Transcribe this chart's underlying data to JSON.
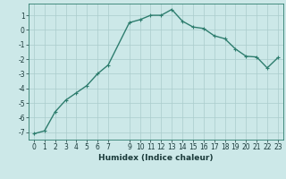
{
  "x": [
    0,
    1,
    2,
    3,
    4,
    5,
    6,
    7,
    9,
    10,
    11,
    12,
    13,
    14,
    15,
    16,
    17,
    18,
    19,
    20,
    21,
    22,
    23
  ],
  "y": [
    -7.1,
    -6.9,
    -5.6,
    -4.8,
    -4.3,
    -3.8,
    -3.0,
    -2.4,
    0.5,
    0.7,
    1.0,
    1.0,
    1.4,
    0.6,
    0.2,
    0.1,
    -0.4,
    -0.6,
    -1.3,
    -1.8,
    -1.85,
    -2.6,
    -1.9
  ],
  "line_color": "#2e7d6e",
  "marker": "+",
  "marker_size": 3,
  "bg_color": "#cce8e8",
  "grid_color": "#aacccc",
  "xlabel": "Humidex (Indice chaleur)",
  "xlim": [
    -0.5,
    23.5
  ],
  "ylim": [
    -7.5,
    1.8
  ],
  "xticks": [
    0,
    1,
    2,
    3,
    4,
    5,
    6,
    7,
    9,
    10,
    11,
    12,
    13,
    14,
    15,
    16,
    17,
    18,
    19,
    20,
    21,
    22,
    23
  ],
  "yticks": [
    -7,
    -6,
    -5,
    -4,
    -3,
    -2,
    -1,
    0,
    1
  ],
  "tick_label_size": 5.5,
  "xlabel_size": 6.5,
  "line_width": 1.0,
  "spine_color": "#2e7d6e"
}
